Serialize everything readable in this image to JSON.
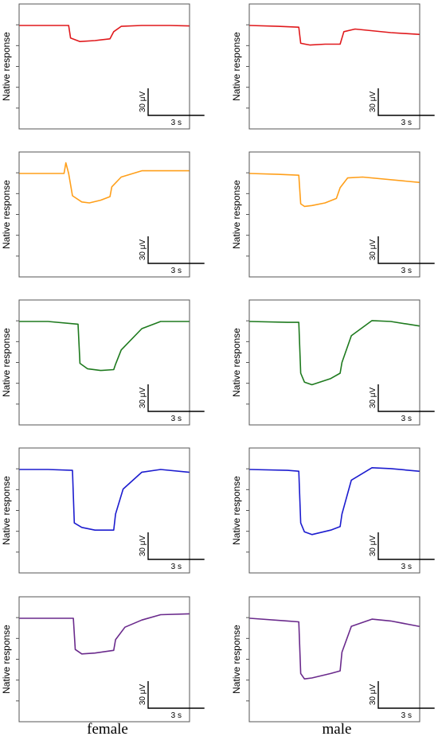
{
  "chart_data": {
    "type": "line",
    "ylabel": "Native response",
    "scale_bar": {
      "voltage_label": "30 μV",
      "time_label": "3 s"
    },
    "columns": [
      "female",
      "male"
    ],
    "colors": [
      "#e0191c",
      "#ff9f1a",
      "#1e7a1e",
      "#1c1ccf",
      "#6a2a8c"
    ],
    "panels": [
      {
        "row": 0,
        "column": "female",
        "x": [
          0,
          2.6,
          2.7,
          3.2,
          4.0,
          4.8,
          5.0,
          5.4,
          6.5,
          8.0,
          9.0
        ],
        "y": [
          0,
          0,
          -14,
          -18,
          -17,
          -15,
          -7,
          -1,
          0,
          0,
          -0.5
        ]
      },
      {
        "row": 0,
        "column": "male",
        "x": [
          0,
          1.5,
          2.6,
          2.7,
          3.2,
          4.0,
          4.8,
          5.0,
          5.6,
          7.5,
          9.0
        ],
        "y": [
          0,
          -1,
          -2,
          -20,
          -22,
          -21,
          -21,
          -7,
          -4,
          -8,
          -10
        ]
      },
      {
        "row": 1,
        "column": "female",
        "x": [
          0,
          2.35,
          2.45,
          2.6,
          2.8,
          3.3,
          3.7,
          4.3,
          4.8,
          4.9,
          5.4,
          6.5,
          9.0
        ],
        "y": [
          0,
          0,
          12,
          0,
          -25,
          -32,
          -33,
          -30,
          -26,
          -15,
          -4,
          3,
          3
        ]
      },
      {
        "row": 1,
        "column": "male",
        "x": [
          0,
          1.5,
          2.6,
          2.7,
          2.9,
          3.3,
          4.0,
          4.6,
          4.8,
          5.2,
          6.0,
          9.0
        ],
        "y": [
          0,
          -1,
          -2,
          -34,
          -37,
          -36,
          -33,
          -28,
          -16,
          -5,
          -4,
          -10
        ]
      },
      {
        "row": 2,
        "column": "female",
        "x": [
          0,
          1.5,
          3.1,
          3.2,
          3.6,
          4.3,
          5.0,
          5.1,
          5.4,
          6.5,
          7.5,
          9.0
        ],
        "y": [
          0,
          0,
          -3,
          -47,
          -53,
          -55,
          -54,
          -48,
          -32,
          -8,
          0,
          0
        ]
      },
      {
        "row": 2,
        "column": "male",
        "x": [
          0,
          2.0,
          2.6,
          2.7,
          2.9,
          3.3,
          4.3,
          4.8,
          4.9,
          5.4,
          6.5,
          7.5,
          9.0
        ],
        "y": [
          0,
          -1,
          -1,
          -58,
          -68,
          -71,
          -64,
          -58,
          -46,
          -16,
          1,
          0,
          -5
        ]
      },
      {
        "row": 3,
        "column": "female",
        "x": [
          0,
          1.5,
          2.8,
          2.9,
          3.3,
          4.0,
          5.0,
          5.1,
          5.5,
          6.5,
          7.5,
          9.0
        ],
        "y": [
          0,
          0,
          -1,
          -60,
          -65,
          -68,
          -68,
          -50,
          -22,
          -3,
          0,
          -3
        ]
      },
      {
        "row": 3,
        "column": "male",
        "x": [
          0,
          2.0,
          2.6,
          2.7,
          2.9,
          3.3,
          4.3,
          4.8,
          4.9,
          5.4,
          6.5,
          7.5,
          9.0
        ],
        "y": [
          0,
          -1,
          -2,
          -60,
          -70,
          -73,
          -68,
          -64,
          -50,
          -12,
          2,
          1,
          -2
        ]
      },
      {
        "row": 4,
        "column": "female",
        "x": [
          0,
          1.5,
          2.85,
          2.95,
          3.3,
          4.0,
          5.0,
          5.1,
          5.6,
          6.5,
          7.5,
          9.0
        ],
        "y": [
          0,
          0,
          0,
          -35,
          -40,
          -39,
          -36,
          -24,
          -10,
          -2,
          4,
          5
        ]
      },
      {
        "row": 4,
        "column": "male",
        "x": [
          0,
          2.0,
          2.6,
          2.7,
          2.9,
          3.3,
          4.3,
          4.8,
          4.9,
          5.4,
          6.5,
          7.5,
          9.0
        ],
        "y": [
          0,
          -3,
          -4,
          -62,
          -68,
          -67,
          -62,
          -59,
          -38,
          -9,
          -1,
          -3,
          -9
        ]
      }
    ]
  },
  "labels": {
    "female": "female",
    "male": "male"
  }
}
